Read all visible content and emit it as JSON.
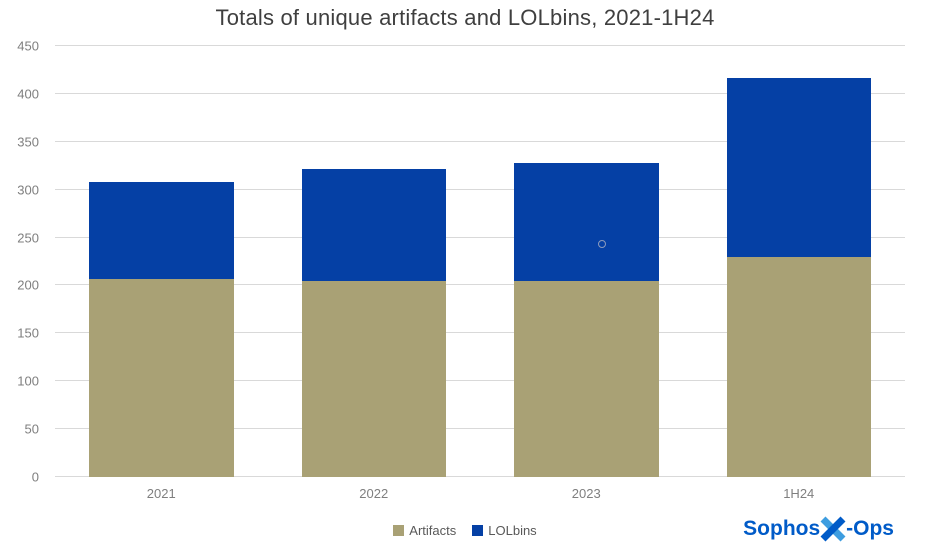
{
  "title": "Totals of unique artifacts and LOLbins, 2021-1H24",
  "chart_data": {
    "type": "bar",
    "stacked": true,
    "title": "Totals of unique artifacts and LOLbins, 2021-1H24",
    "categories": [
      "2021",
      "2022",
      "2023",
      "1H24"
    ],
    "series": [
      {
        "name": "Artifacts",
        "color": "#a9a175",
        "values": [
          207,
          205,
          205,
          230
        ]
      },
      {
        "name": "LOLbins",
        "color": "#0540a5",
        "values": [
          101,
          117,
          123,
          187
        ]
      }
    ],
    "totals": [
      308,
      322,
      328,
      417
    ],
    "xlabel": "",
    "ylabel": "",
    "ylim": [
      0,
      450
    ],
    "yticks": [
      0,
      50,
      100,
      150,
      200,
      250,
      300,
      350,
      400,
      450
    ],
    "grid": true,
    "legend_position": "bottom"
  },
  "legend": {
    "items": [
      {
        "label": "Artifacts",
        "color": "#a9a175"
      },
      {
        "label": "LOLbins",
        "color": "#0540a5"
      }
    ]
  },
  "logo": {
    "text_left": "Sophos",
    "text_right": "-Ops",
    "color": "#005bc8",
    "x_accent_color": "#3e9de0"
  }
}
